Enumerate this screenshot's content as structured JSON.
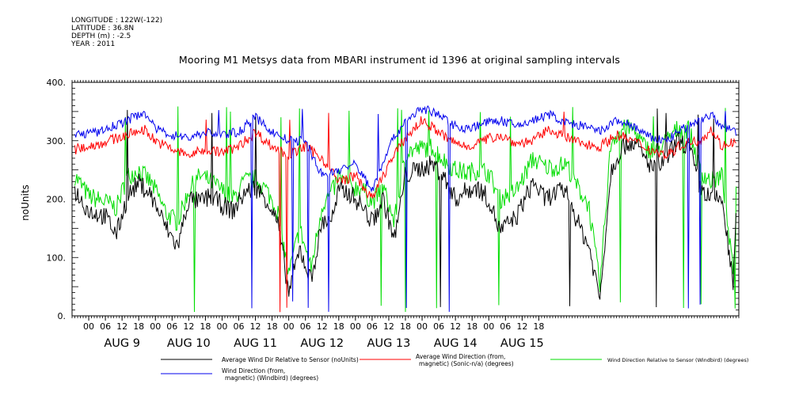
{
  "header": {
    "longitude": "LONGITUDE : 122W(-122)",
    "latitude": "LATITUDE : 36.8N",
    "depth": "DEPTH (m) : -2.5",
    "year": "YEAR : 2011"
  },
  "chart_data": {
    "type": "line",
    "title": "Mooring M1 Metsys data from MBARI instrument id 1396 at original sampling intervals",
    "ylabel": "noUnits",
    "xlabel": "",
    "ylim": [
      0,
      400
    ],
    "yticks": [
      "0.",
      "100.",
      "200.",
      "300.",
      "400."
    ],
    "xlim_hours": [
      -30,
      210
    ],
    "hour_tick_labels": [
      "00",
      "06",
      "12",
      "18",
      "00",
      "06",
      "12",
      "18",
      "00",
      "06",
      "12",
      "18",
      "00",
      "06",
      "12",
      "18",
      "00",
      "06",
      "12",
      "18",
      "00",
      "06",
      "12",
      "18",
      "00",
      "06",
      "12",
      "18"
    ],
    "day_labels": [
      "AUG  9",
      "AUG 10",
      "AUG 11",
      "AUG 12",
      "AUG 13",
      "AUG 14",
      "AUG 15"
    ],
    "series": [
      {
        "name": "Average Wind Dir Relative to Sensor (noUnits)",
        "color": "#000000",
        "x": [
          -29,
          -24,
          -18,
          -14,
          -10,
          -6,
          -2,
          0,
          4,
          8,
          12,
          16,
          20,
          24,
          28,
          32,
          36,
          40,
          44,
          48,
          52,
          56,
          60,
          64,
          66,
          70,
          74,
          78,
          82,
          86,
          90,
          94,
          100,
          104,
          108,
          112,
          116,
          120,
          124,
          130,
          136,
          140,
          144,
          148,
          152,
          156,
          160,
          164,
          168,
          172,
          176,
          180,
          184,
          188,
          192,
          196,
          200,
          204,
          208,
          209
        ],
        "values": [
          215,
          180,
          170,
          140,
          205,
          228,
          210,
          190,
          150,
          118,
          200,
          195,
          205,
          190,
          180,
          210,
          220,
          200,
          160,
          40,
          115,
          60,
          160,
          170,
          215,
          210,
          190,
          160,
          200,
          130,
          240,
          250,
          260,
          235,
          200,
          215,
          220,
          200,
          145,
          170,
          230,
          200,
          210,
          215,
          160,
          120,
          30,
          250,
          290,
          300,
          270,
          250,
          270,
          300,
          290,
          220,
          200,
          200,
          50,
          170
        ]
      },
      {
        "name": "Average Wind Direction (from, magnetic) (Sonic-n/a) (degrees)",
        "color": "#ff0000",
        "x": [
          -29,
          -20,
          -10,
          -4,
          0,
          6,
          12,
          18,
          24,
          30,
          36,
          42,
          48,
          54,
          60,
          66,
          72,
          78,
          84,
          90,
          96,
          102,
          106,
          112,
          118,
          124,
          130,
          136,
          142,
          148,
          154,
          160,
          166,
          172,
          178,
          184,
          190,
          196,
          200,
          204,
          208,
          209
        ],
        "values": [
          285,
          295,
          310,
          320,
          300,
          285,
          275,
          285,
          280,
          290,
          315,
          290,
          275,
          290,
          270,
          230,
          240,
          200,
          260,
          305,
          335,
          315,
          300,
          290,
          300,
          310,
          295,
          300,
          320,
          305,
          295,
          290,
          310,
          300,
          285,
          275,
          295,
          300,
          320,
          290,
          300,
          290
        ]
      },
      {
        "name": "Wind Direction Relative to Sensor (Windbird) (degrees)",
        "color": "#00dd00",
        "x": [
          -29,
          -24,
          -18,
          -14,
          -10,
          -6,
          -2,
          0,
          4,
          8,
          12,
          16,
          20,
          24,
          28,
          32,
          36,
          40,
          44,
          48,
          52,
          56,
          60,
          64,
          66,
          70,
          74,
          78,
          82,
          86,
          90,
          94,
          100,
          104,
          108,
          112,
          116,
          120,
          124,
          130,
          136,
          140,
          144,
          148,
          152,
          156,
          160,
          164,
          168,
          172,
          176,
          180,
          184,
          188,
          192,
          196,
          200,
          204,
          208,
          209
        ],
        "values": [
          240,
          205,
          195,
          185,
          240,
          250,
          230,
          215,
          175,
          160,
          215,
          240,
          230,
          215,
          200,
          230,
          235,
          215,
          180,
          70,
          150,
          80,
          190,
          215,
          240,
          220,
          220,
          195,
          220,
          160,
          280,
          285,
          290,
          265,
          250,
          245,
          250,
          245,
          200,
          215,
          270,
          255,
          255,
          260,
          220,
          190,
          50,
          300,
          320,
          320,
          290,
          280,
          300,
          320,
          320,
          250,
          230,
          240,
          70,
          215
        ]
      },
      {
        "name": "Wind Direction (from, magnetic) (Windbird) (degrees)",
        "color": "#0000ee",
        "x": [
          -29,
          -20,
          -10,
          -4,
          0,
          6,
          12,
          18,
          24,
          30,
          36,
          42,
          48,
          54,
          60,
          66,
          72,
          78,
          84,
          90,
          96,
          102,
          106,
          112,
          118,
          124,
          130,
          136,
          142,
          148,
          154,
          160,
          166,
          172,
          178,
          184,
          190,
          196,
          200,
          204,
          208,
          209
        ],
        "values": [
          310,
          315,
          335,
          350,
          320,
          310,
          305,
          315,
          310,
          315,
          340,
          315,
          300,
          300,
          240,
          250,
          260,
          215,
          290,
          335,
          355,
          345,
          330,
          320,
          330,
          335,
          325,
          335,
          345,
          330,
          325,
          315,
          335,
          325,
          305,
          300,
          320,
          335,
          345,
          320,
          320,
          315
        ]
      }
    ],
    "legend_position": "bottom"
  },
  "legend": [
    {
      "line1": "Average Wind Dir Relative to Sensor (noUnits)",
      "line2": ""
    },
    {
      "line1": "Average Wind Direction (from,",
      "line2": "magnetic) (Sonic-n/a) (degrees)"
    },
    {
      "line1": "Wind Direction Relative to Sensor (Windbird) (degrees)",
      "line2": ""
    },
    {
      "line1": "Wind Direction (from,",
      "line2": "magnetic) (Windbird) (degrees)"
    }
  ]
}
